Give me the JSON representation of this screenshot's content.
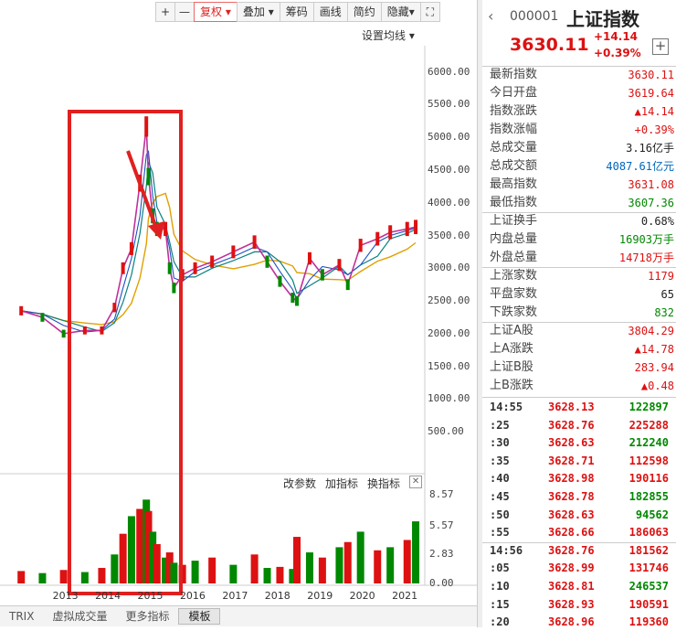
{
  "toolbar": {
    "plus": "+",
    "minus": "—",
    "fuquan": "复权",
    "diejia": "叠加",
    "chouma": "筹码",
    "huaxian": "画线",
    "jianyue": "简约",
    "yincang": "隐藏",
    "expand": "⛶"
  },
  "settings_ma": "设置均线",
  "indicator_bar": {
    "change_params": "改参数",
    "add_indicator": "加指标",
    "swap_indicator": "换指标",
    "close": "✕"
  },
  "bottom_tabs": [
    "TRIX",
    "虚拟成交量",
    "更多指标",
    "模板"
  ],
  "colors": {
    "up": "#dd1111",
    "down": "#008800",
    "accent_box": "#e02020",
    "arrow": "#e02020"
  },
  "chart_data": {
    "type": "line",
    "y_ticks": [
      "6000.00",
      "5500.00",
      "5000.00",
      "4500.00",
      "4000.00",
      "3500.00",
      "3000.00",
      "2500.00",
      "2000.00",
      "1500.00",
      "1000.00",
      "500.00"
    ],
    "ylim": [
      0,
      6400
    ],
    "x_ticks": [
      "2013",
      "2014",
      "2015",
      "2016",
      "2017",
      "2018",
      "2019",
      "2020",
      "2021"
    ],
    "x": [
      2012.5,
      2013.0,
      2013.5,
      2014.0,
      2014.4,
      2014.7,
      2014.9,
      2015.1,
      2015.3,
      2015.45,
      2015.5,
      2015.6,
      2015.7,
      2015.9,
      2016.0,
      2016.1,
      2016.3,
      2016.6,
      2017.0,
      2017.5,
      2018.0,
      2018.3,
      2018.6,
      2018.9,
      2019.0,
      2019.3,
      2019.6,
      2020.0,
      2020.2,
      2020.5,
      2020.9,
      2021.2,
      2021.6,
      2021.8
    ],
    "series": [
      {
        "values": [
          2350,
          2250,
          2000,
          2050,
          2050,
          2400,
          3000,
          3300,
          4300,
          5166,
          4400,
          3800,
          3600,
          3600,
          3000,
          2700,
          2900,
          3000,
          3100,
          3250,
          3400,
          3100,
          2800,
          2550,
          2500,
          3150,
          2900,
          3050,
          2750,
          3350,
          3450,
          3550,
          3600,
          3630
        ]
      }
    ],
    "volume_ticks": [
      "8.57",
      "5.57",
      "2.83",
      "0.00"
    ],
    "volume_ylim": [
      0,
      8.57
    ],
    "volume_values": [
      1.2,
      1.0,
      1.3,
      1.1,
      1.5,
      2.8,
      4.8,
      6.5,
      7.2,
      8.1,
      7.0,
      5.0,
      3.8,
      2.5,
      3.0,
      2.0,
      1.8,
      2.2,
      2.5,
      1.8,
      2.8,
      1.5,
      1.6,
      1.4,
      4.5,
      3.0,
      2.5,
      3.5,
      4.0,
      5.0,
      3.2,
      3.5,
      4.2,
      6.0
    ]
  },
  "quote": {
    "code": "000001",
    "name": "上证指数",
    "price": "3630.11",
    "change": "+14.14",
    "change_pct": "+0.39%",
    "add": "+",
    "rows": [
      {
        "label": "最新指数",
        "value": "3630.11",
        "color": "red"
      },
      {
        "label": "今日开盘",
        "value": "3619.64",
        "color": "red"
      },
      {
        "label": "指数涨跌",
        "value": "▲14.14",
        "color": "red"
      },
      {
        "label": "指数涨幅",
        "value": "+0.39%",
        "color": "red"
      },
      {
        "label": "总成交量",
        "value": "3.16亿手",
        "color": "blk"
      },
      {
        "label": "总成交额",
        "value": "4087.61亿元",
        "color": "blue"
      },
      {
        "label": "最高指数",
        "value": "3631.08",
        "color": "red"
      },
      {
        "label": "最低指数",
        "value": "3607.36",
        "color": "green"
      },
      {
        "label": "上证换手",
        "value": "0.68%",
        "color": "blk"
      },
      {
        "label": "内盘总量",
        "value": "16903万手",
        "color": "green"
      },
      {
        "label": "外盘总量",
        "value": "14718万手",
        "color": "red"
      },
      {
        "label": "上涨家数",
        "value": "1179",
        "color": "red"
      },
      {
        "label": "平盘家数",
        "value": "65",
        "color": "blk"
      },
      {
        "label": "下跌家数",
        "value": "832",
        "color": "green"
      },
      {
        "label": "上证A股",
        "value": "3804.29",
        "color": "red"
      },
      {
        "label": "上A涨跌",
        "value": "▲14.78",
        "color": "red"
      },
      {
        "label": "上证B股",
        "value": "283.94",
        "color": "red"
      },
      {
        "label": "上B涨跌",
        "value": "▲0.48",
        "color": "red"
      }
    ],
    "ticks": [
      {
        "time": "14:55",
        "price": "3628.13",
        "vol": "122897",
        "color": "green"
      },
      {
        "time": ":25",
        "price": "3628.76",
        "vol": "225288",
        "color": "red"
      },
      {
        "time": ":30",
        "price": "3628.63",
        "vol": "212240",
        "color": "green"
      },
      {
        "time": ":35",
        "price": "3628.71",
        "vol": "112598",
        "color": "red"
      },
      {
        "time": ":40",
        "price": "3628.98",
        "vol": "190116",
        "color": "red"
      },
      {
        "time": ":45",
        "price": "3628.78",
        "vol": "182855",
        "color": "green"
      },
      {
        "time": ":50",
        "price": "3628.63",
        "vol": "94562",
        "color": "green"
      },
      {
        "time": ":55",
        "price": "3628.66",
        "vol": "186063",
        "color": "red"
      },
      {
        "time": "14:56",
        "price": "3628.76",
        "vol": "181562",
        "color": "red"
      },
      {
        "time": ":05",
        "price": "3628.99",
        "vol": "131746",
        "color": "red"
      },
      {
        "time": ":10",
        "price": "3628.81",
        "vol": "246537",
        "color": "green"
      },
      {
        "time": ":15",
        "price": "3628.93",
        "vol": "190591",
        "color": "red"
      },
      {
        "time": ":20",
        "price": "3628.96",
        "vol": "119360",
        "color": "red"
      }
    ]
  }
}
